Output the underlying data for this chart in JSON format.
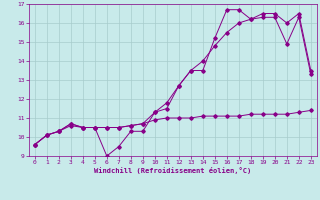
{
  "xlabel": "Windchill (Refroidissement éolien,°C)",
  "background_color": "#c8eaea",
  "grid_color": "#a8cccc",
  "line_color": "#880088",
  "xlim": [
    -0.5,
    23.5
  ],
  "ylim": [
    9,
    17
  ],
  "yticks": [
    9,
    10,
    11,
    12,
    13,
    14,
    15,
    16,
    17
  ],
  "xticks": [
    0,
    1,
    2,
    3,
    4,
    5,
    6,
    7,
    8,
    9,
    10,
    11,
    12,
    13,
    14,
    15,
    16,
    17,
    18,
    19,
    20,
    21,
    22,
    23
  ],
  "line1_x": [
    0,
    1,
    2,
    3,
    4,
    5,
    6,
    7,
    8,
    9,
    10,
    11,
    12,
    13,
    14,
    15,
    16,
    17,
    18,
    19,
    20,
    21,
    22,
    23
  ],
  "line1_y": [
    9.6,
    10.1,
    10.3,
    10.7,
    10.5,
    10.5,
    9.0,
    9.5,
    10.3,
    10.3,
    11.3,
    11.5,
    12.7,
    13.5,
    13.5,
    15.2,
    16.7,
    16.7,
    16.2,
    16.3,
    16.3,
    14.9,
    16.3,
    13.3
  ],
  "line2_x": [
    0,
    1,
    2,
    3,
    4,
    5,
    6,
    7,
    8,
    9,
    10,
    11,
    12,
    13,
    14,
    15,
    16,
    17,
    18,
    19,
    20,
    21,
    22,
    23
  ],
  "line2_y": [
    9.6,
    10.1,
    10.3,
    10.6,
    10.5,
    10.5,
    10.5,
    10.5,
    10.6,
    10.7,
    10.9,
    11.0,
    11.0,
    11.0,
    11.1,
    11.1,
    11.1,
    11.1,
    11.2,
    11.2,
    11.2,
    11.2,
    11.3,
    11.4
  ],
  "line3_x": [
    0,
    1,
    2,
    3,
    4,
    5,
    6,
    7,
    8,
    9,
    10,
    11,
    12,
    13,
    14,
    15,
    16,
    17,
    18,
    19,
    20,
    21,
    22,
    23
  ],
  "line3_y": [
    9.6,
    10.1,
    10.3,
    10.7,
    10.5,
    10.5,
    10.5,
    10.5,
    10.6,
    10.7,
    11.3,
    11.8,
    12.7,
    13.5,
    14.0,
    14.8,
    15.5,
    16.0,
    16.2,
    16.5,
    16.5,
    16.0,
    16.5,
    13.5
  ]
}
